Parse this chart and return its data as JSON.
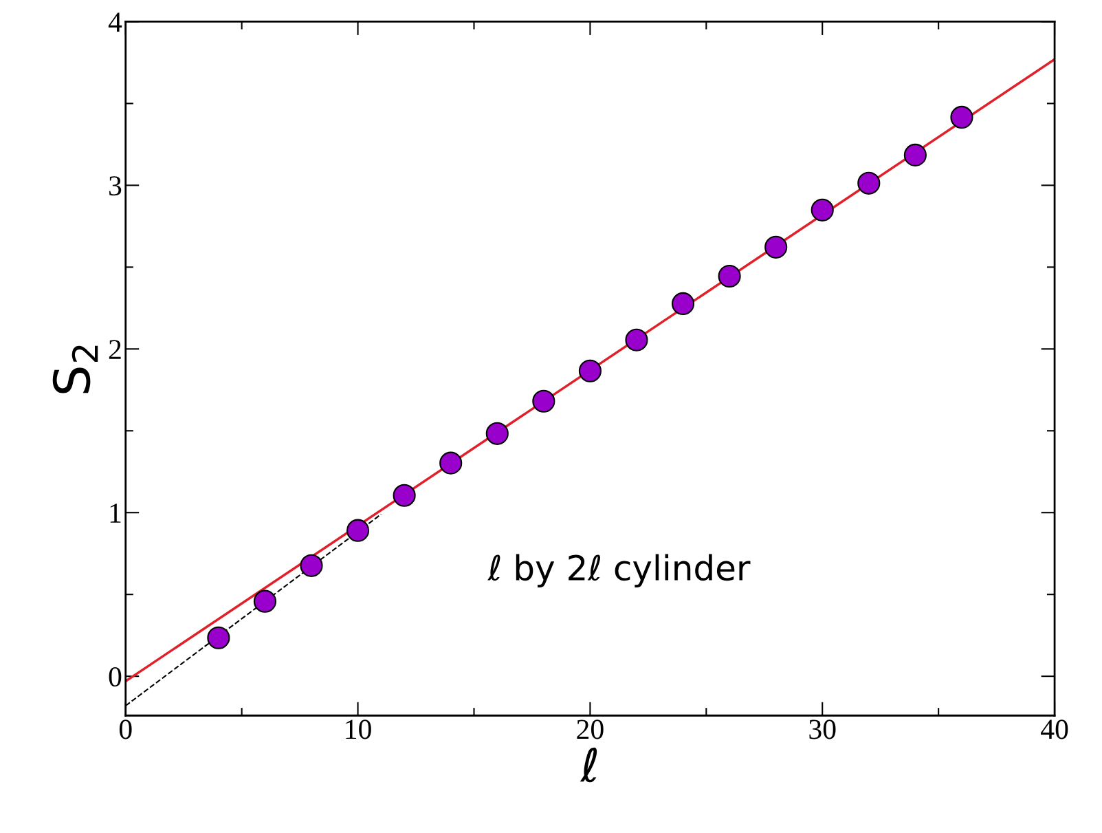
{
  "chart_data": {
    "type": "scatter",
    "xlabel": "ℓ",
    "ylabel": "S$_{2}$",
    "annotations": [
      "ℓ by 2ℓ cylinder"
    ],
    "xlim": [
      0,
      40
    ],
    "xticks": [
      0,
      10,
      20,
      30,
      40
    ],
    "ylim": [
      -0.24,
      4
    ],
    "yticks": [
      0,
      1,
      2,
      3,
      4
    ],
    "grid": false,
    "marker": "circle",
    "series": [
      {
        "type": "line",
        "color": "#e0202a",
        "x": [
          0,
          40
        ],
        "values": [
          -0.03,
          3.77
        ],
        "line_style": "solid",
        "marker": "none"
      },
      {
        "type": "line",
        "color": "#000000",
        "x": [
          0,
          11
        ],
        "values": [
          -0.18,
          0.99
        ],
        "line_style": "dashed",
        "marker": "none"
      },
      {
        "color": "#9900cc",
        "x": [
          4,
          6,
          8,
          10,
          12,
          14,
          16,
          18,
          20,
          22,
          24,
          26,
          28,
          30,
          32,
          34,
          36
        ],
        "values": [
          0.235,
          0.458,
          0.676,
          0.891,
          1.105,
          1.303,
          1.483,
          1.681,
          1.866,
          2.055,
          2.277,
          2.445,
          2.622,
          2.849,
          3.013,
          3.185,
          3.416
        ]
      }
    ]
  }
}
